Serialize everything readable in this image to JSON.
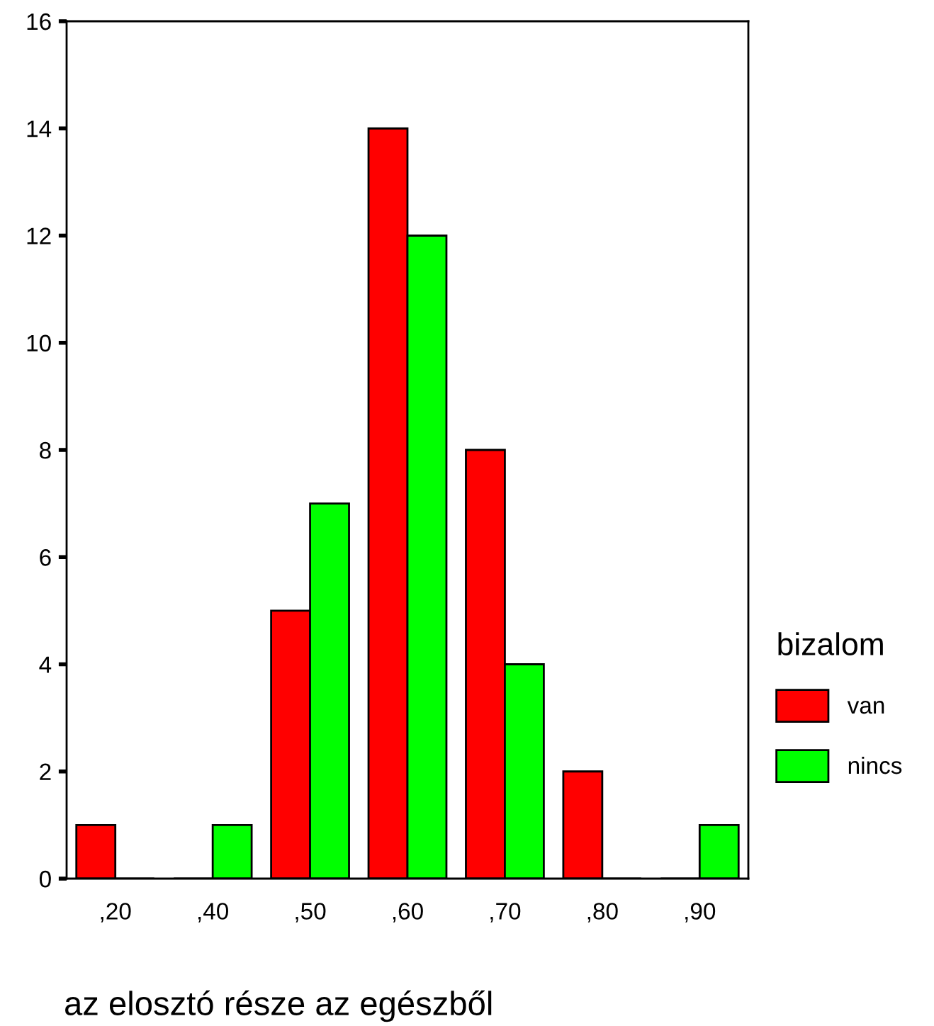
{
  "chart_data": {
    "type": "bar",
    "xlabel": "az elosztó része az egészből",
    "legend_title": "bizalom",
    "categories": [
      ",20",
      ",40",
      ",50",
      ",60",
      ",70",
      ",80",
      ",90"
    ],
    "series": [
      {
        "name": "van",
        "color": "#ff0000",
        "values": [
          1,
          0,
          5,
          14,
          8,
          2,
          0
        ]
      },
      {
        "name": "nincs",
        "color": "#00ff00",
        "values": [
          0,
          1,
          7,
          12,
          4,
          0,
          1
        ]
      }
    ],
    "ylim": [
      0,
      16
    ],
    "yticks": [
      0,
      2,
      4,
      6,
      8,
      10,
      12,
      14,
      16
    ],
    "grid": false,
    "legend": "right"
  }
}
